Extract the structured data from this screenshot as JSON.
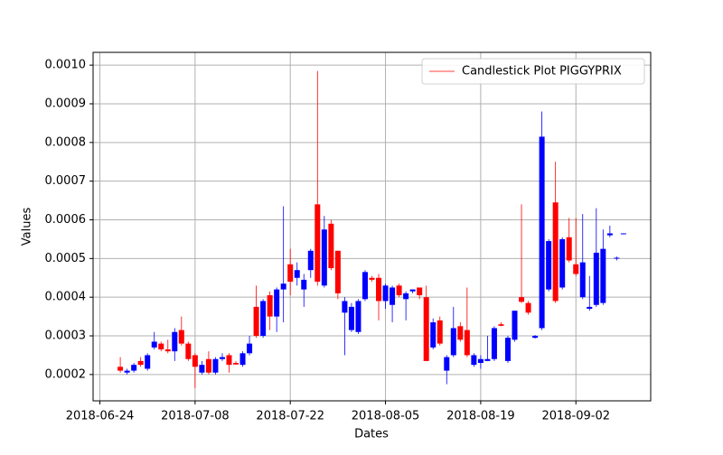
{
  "chart_data": {
    "type": "candlestick",
    "name": "Candlestick Plot PIGGYPRIX",
    "xlabel": "Dates",
    "ylabel": "Values",
    "up_color": "blue",
    "down_color": "red",
    "legend_color": "red",
    "legend": "upper right",
    "grid": true,
    "x": [
      "2018-06-27",
      "2018-06-28",
      "2018-06-29",
      "2018-06-30",
      "2018-07-01",
      "2018-07-02",
      "2018-07-03",
      "2018-07-04",
      "2018-07-05",
      "2018-07-06",
      "2018-07-07",
      "2018-07-08",
      "2018-07-09",
      "2018-07-10",
      "2018-07-11",
      "2018-07-12",
      "2018-07-13",
      "2018-07-14",
      "2018-07-15",
      "2018-07-16",
      "2018-07-17",
      "2018-07-18",
      "2018-07-19",
      "2018-07-20",
      "2018-07-21",
      "2018-07-22",
      "2018-07-23",
      "2018-07-24",
      "2018-07-25",
      "2018-07-26",
      "2018-07-27",
      "2018-07-28",
      "2018-07-29",
      "2018-07-30",
      "2018-07-31",
      "2018-08-01",
      "2018-08-02",
      "2018-08-03",
      "2018-08-04",
      "2018-08-05",
      "2018-08-06",
      "2018-08-07",
      "2018-08-08",
      "2018-08-09",
      "2018-08-10",
      "2018-08-11",
      "2018-08-12",
      "2018-08-13",
      "2018-08-14",
      "2018-08-15",
      "2018-08-16",
      "2018-08-17",
      "2018-08-18",
      "2018-08-19",
      "2018-08-20",
      "2018-08-21",
      "2018-08-22",
      "2018-08-23",
      "2018-08-24",
      "2018-08-25",
      "2018-08-26",
      "2018-08-27",
      "2018-08-28",
      "2018-08-29",
      "2018-08-30",
      "2018-08-31",
      "2018-09-01",
      "2018-09-02",
      "2018-09-03",
      "2018-09-04",
      "2018-09-05",
      "2018-09-06",
      "2018-09-07",
      "2018-09-08",
      "2018-09-09"
    ],
    "open": [
      0.00022,
      0.000205,
      0.00021,
      0.000235,
      0.000215,
      0.00027,
      0.00028,
      0.000265,
      0.00026,
      0.000315,
      0.00028,
      0.00025,
      0.000205,
      0.00024,
      0.000205,
      0.00024,
      0.00025,
      0.00023,
      0.000225,
      0.000255,
      0.000375,
      0.0003,
      0.000405,
      0.00035,
      0.00042,
      0.000485,
      0.00045,
      0.00042,
      0.00047,
      0.00064,
      0.00043,
      0.00059,
      0.00052,
      0.00036,
      0.000315,
      0.00031,
      0.000395,
      0.00045,
      0.00045,
      0.00039,
      0.00038,
      0.00043,
      0.000395,
      0.000415,
      0.000425,
      0.0004,
      0.00027,
      0.00034,
      0.00021,
      0.00025,
      0.000325,
      0.000315,
      0.000225,
      0.00023,
      0.000235,
      0.00024,
      0.00033,
      0.000235,
      0.00029,
      0.0004,
      0.000385,
      0.000295,
      0.00032,
      0.00042,
      0.000645,
      0.000425,
      0.000555,
      0.000485,
      0.0004,
      0.00037,
      0.00038,
      0.000385,
      0.00056,
      0.0005,
      0.000563
    ],
    "high": [
      0.000245,
      0.000215,
      0.00023,
      0.000245,
      0.000255,
      0.00031,
      0.000285,
      0.00029,
      0.00032,
      0.00035,
      0.000285,
      0.000255,
      0.000235,
      0.00026,
      0.000245,
      0.000255,
      0.000255,
      0.000235,
      0.00026,
      0.0003,
      0.00043,
      0.000395,
      0.000415,
      0.000425,
      0.000635,
      0.000525,
      0.00049,
      0.00046,
      0.000525,
      0.000985,
      0.00061,
      0.0006,
      0.00052,
      0.0004,
      0.000385,
      0.000395,
      0.00047,
      0.000455,
      0.00046,
      0.000435,
      0.00043,
      0.000435,
      0.000415,
      0.00042,
      0.000425,
      0.00043,
      0.000345,
      0.00035,
      0.00025,
      0.000375,
      0.000335,
      0.000425,
      0.000255,
      0.00025,
      0.0003,
      0.000325,
      0.000335,
      0.0003,
      0.000365,
      0.00064,
      0.00039,
      0.000302,
      0.00088,
      0.00055,
      0.00075,
      0.000555,
      0.000605,
      0.000605,
      0.000615,
      0.000455,
      0.00063,
      0.000575,
      0.000585,
      0.000505,
      0.000565
    ],
    "low": [
      0.000205,
      0.0002,
      0.000205,
      0.00022,
      0.00021,
      0.000265,
      0.00026,
      0.000255,
      0.000235,
      0.000275,
      0.000235,
      0.000165,
      0.0002,
      0.0002,
      0.0002,
      0.000235,
      0.000205,
      0.000225,
      0.00022,
      0.00025,
      0.000295,
      0.000295,
      0.000315,
      0.00031,
      0.000335,
      0.000405,
      0.00043,
      0.000375,
      0.00045,
      0.00043,
      0.000425,
      0.00047,
      0.000395,
      0.00025,
      0.00031,
      0.000305,
      0.00039,
      0.00044,
      0.00034,
      0.00037,
      0.000335,
      0.0004,
      0.00034,
      0.00041,
      0.000395,
      0.000235,
      0.000265,
      0.000275,
      0.000175,
      0.000245,
      0.000285,
      0.000245,
      0.00022,
      0.000215,
      0.000235,
      0.000235,
      0.000325,
      0.00023,
      0.000285,
      0.000385,
      0.000355,
      0.000293,
      0.000315,
      0.000415,
      0.000385,
      0.00042,
      0.00049,
      0.000455,
      0.000395,
      0.000365,
      0.000375,
      0.00038,
      0.000555,
      0.000495,
      0.000562
    ],
    "close": [
      0.00021,
      0.00021,
      0.000225,
      0.000225,
      0.00025,
      0.000285,
      0.000265,
      0.00026,
      0.00031,
      0.00028,
      0.00024,
      0.00022,
      0.000225,
      0.000205,
      0.00024,
      0.000245,
      0.000225,
      0.000226,
      0.000255,
      0.00028,
      0.0003,
      0.00039,
      0.00035,
      0.00042,
      0.000435,
      0.00044,
      0.00047,
      0.000445,
      0.00052,
      0.00044,
      0.000575,
      0.000475,
      0.00041,
      0.00039,
      0.000375,
      0.00039,
      0.000465,
      0.000445,
      0.00039,
      0.00043,
      0.000425,
      0.000405,
      0.00041,
      0.00042,
      0.000405,
      0.000235,
      0.000335,
      0.00028,
      0.000245,
      0.00032,
      0.00029,
      0.00025,
      0.00025,
      0.00024,
      0.00024,
      0.00032,
      0.000326,
      0.000295,
      0.000365,
      0.000388,
      0.00036,
      0.0003,
      0.000815,
      0.000545,
      0.00039,
      0.00055,
      0.000495,
      0.00046,
      0.00049,
      0.000375,
      0.000515,
      0.000525,
      0.000565,
      0.000502,
      0.000565
    ],
    "xlim": [
      "2018-06-23",
      "2018-09-13"
    ],
    "xticks": [
      "2018-06-24",
      "2018-07-08",
      "2018-07-22",
      "2018-08-05",
      "2018-08-19",
      "2018-09-02"
    ],
    "ylim": [
      0.000132,
      0.001033
    ],
    "yticks": [
      0.0002,
      0.0003,
      0.0004,
      0.0005,
      0.0006,
      0.0007,
      0.0008,
      0.0009,
      {
        "value": 0.001,
        "label": "0.0010"
      }
    ]
  }
}
